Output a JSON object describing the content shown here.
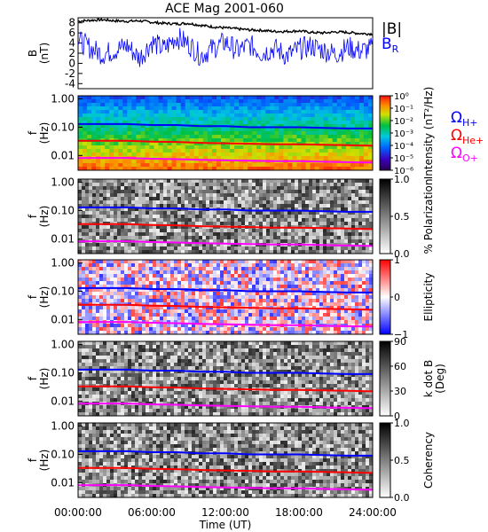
{
  "title": "ACE Mag 2001-060",
  "xaxis": {
    "label": "Time (UT)",
    "ticks": [
      "00:00:00",
      "06:00:00",
      "12:00:00",
      "18:00:00",
      "24:00:00"
    ],
    "range_hours": [
      0,
      24
    ]
  },
  "colors": {
    "B_total": "#000000",
    "B_R": "#0000ff",
    "H_plus": "#0000ff",
    "He_plus": "#ff0000",
    "O_plus": "#ff00ff"
  },
  "legend": {
    "B_total": "|B|",
    "B_R_main": "B",
    "B_R_sub": "R",
    "omega": "Ω",
    "H_plus": "H+",
    "He_plus": "He+",
    "O_plus": "O+"
  },
  "freq_ticks": [
    "1.00",
    "0.10",
    "0.01"
  ],
  "chart_data": [
    {
      "type": "line",
      "panel": "magnetic-field",
      "title": "ACE Mag 2001-060",
      "ylabel_main": "B",
      "ylabel_unit": "(nT)",
      "ylim": [
        -5,
        9
      ],
      "yticks": [
        "8",
        "6",
        "4",
        "2",
        "0",
        "-2",
        "-4"
      ],
      "x_hours": [
        0,
        1,
        2,
        3,
        4,
        5,
        6,
        7,
        8,
        9,
        10,
        11,
        12,
        13,
        14,
        15,
        16,
        17,
        18,
        19,
        20,
        21,
        22,
        23,
        24
      ],
      "series": [
        {
          "name": "|B|",
          "values": [
            8.3,
            8.5,
            8.6,
            8.4,
            8.3,
            8.4,
            8.1,
            7.9,
            7.8,
            7.9,
            7.5,
            7.2,
            7.0,
            6.8,
            6.6,
            6.5,
            6.3,
            6.3,
            6.4,
            6.1,
            6.0,
            6.2,
            6.1,
            5.9,
            5.8
          ]
        },
        {
          "name": "B_R",
          "values": [
            4.5,
            3.0,
            1.8,
            2.6,
            3.5,
            1.0,
            4.2,
            2.8,
            5.2,
            3.8,
            1.5,
            3.0,
            4.2,
            2.5,
            3.6,
            2.0,
            3.0,
            1.5,
            2.8,
            3.4,
            2.6,
            1.8,
            3.2,
            2.4,
            3.0
          ]
        }
      ]
    },
    {
      "type": "heatmap",
      "panel": "wave-power",
      "ylabel_main": "f",
      "ylabel_unit": "(Hz)",
      "ylim": [
        0.003,
        1.3
      ],
      "yscale": "log",
      "colorbar_label": "Intensity (nT²/Hz)",
      "colorbar_ticks": [
        "10⁰",
        "10⁻¹",
        "10⁻²",
        "10⁻³",
        "10⁻⁴",
        "10⁻⁵",
        "10⁻⁶"
      ],
      "colorbar_range": [
        1e-06,
        1
      ]
    },
    {
      "type": "heatmap",
      "panel": "polarization",
      "ylabel_main": "f",
      "ylabel_unit": "(Hz)",
      "yscale": "log",
      "colorbar_label": "% Polarization",
      "colorbar_ticks": [
        "1.0",
        "0.5",
        "0.0"
      ],
      "colorbar_range": [
        0,
        1
      ]
    },
    {
      "type": "heatmap",
      "panel": "ellipticity",
      "ylabel_main": "f",
      "ylabel_unit": "(Hz)",
      "yscale": "log",
      "colorbar_label": "Ellipticity",
      "colorbar_ticks": [
        "1",
        "0",
        "−1"
      ],
      "colorbar_range": [
        -1,
        1
      ]
    },
    {
      "type": "heatmap",
      "panel": "k-dot-b",
      "ylabel_main": "f",
      "ylabel_unit": "(Hz)",
      "yscale": "log",
      "colorbar_label": "k dot B",
      "colorbar_unit": "(Deg)",
      "colorbar_ticks": [
        "90",
        "60",
        "30",
        "0"
      ],
      "colorbar_range": [
        0,
        90
      ]
    },
    {
      "type": "heatmap",
      "panel": "coherency",
      "ylabel_main": "f",
      "ylabel_unit": "(Hz)",
      "yscale": "log",
      "colorbar_label": "Coherency",
      "colorbar_ticks": [
        "1.0",
        "0.5",
        "0.0"
      ],
      "colorbar_range": [
        0,
        1
      ]
    }
  ],
  "gyro_frequencies": {
    "x_hours": [
      0,
      2,
      4,
      6,
      8,
      10,
      12,
      14,
      16,
      18,
      20,
      22,
      24
    ],
    "H_plus_hz": [
      0.13,
      0.13,
      0.13,
      0.12,
      0.12,
      0.11,
      0.11,
      0.1,
      0.1,
      0.1,
      0.095,
      0.09,
      0.09
    ],
    "He_plus_hz": [
      0.033,
      0.033,
      0.033,
      0.031,
      0.03,
      0.028,
      0.027,
      0.026,
      0.025,
      0.025,
      0.024,
      0.023,
      0.022
    ],
    "O_plus_hz": [
      0.0081,
      0.0082,
      0.0082,
      0.0077,
      0.0074,
      0.007,
      0.0068,
      0.0065,
      0.0063,
      0.0063,
      0.006,
      0.0058,
      0.0056
    ]
  }
}
